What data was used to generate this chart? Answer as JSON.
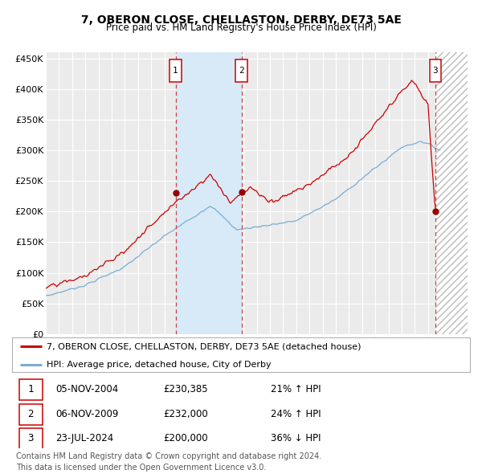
{
  "title": "7, OBERON CLOSE, CHELLASTON, DERBY, DE73 5AE",
  "subtitle": "Price paid vs. HM Land Registry's House Price Index (HPI)",
  "legend_house": "7, OBERON CLOSE, CHELLASTON, DERBY, DE73 5AE (detached house)",
  "legend_hpi": "HPI: Average price, detached house, City of Derby",
  "footnote1": "Contains HM Land Registry data © Crown copyright and database right 2024.",
  "footnote2": "This data is licensed under the Open Government Licence v3.0.",
  "sale_dates": [
    "05-NOV-2004",
    "06-NOV-2009",
    "23-JUL-2024"
  ],
  "sale_prices": [
    230385,
    232000,
    200000
  ],
  "sale_labels": [
    "1",
    "2",
    "3"
  ],
  "sale_pct": [
    "21% ↑ HPI",
    "24% ↑ HPI",
    "36% ↓ HPI"
  ],
  "ylim": [
    0,
    460000
  ],
  "yticks": [
    0,
    50000,
    100000,
    150000,
    200000,
    250000,
    300000,
    350000,
    400000,
    450000
  ],
  "background_color": "#ffffff",
  "plot_bg_color": "#ebebeb",
  "grid_color": "#ffffff",
  "house_line_color": "#cc0000",
  "hpi_line_color": "#7aadd4",
  "sale_marker_color": "#990000",
  "shade_color": "#d8eaf7",
  "x_start_year": 1995,
  "x_end_year": 2027
}
